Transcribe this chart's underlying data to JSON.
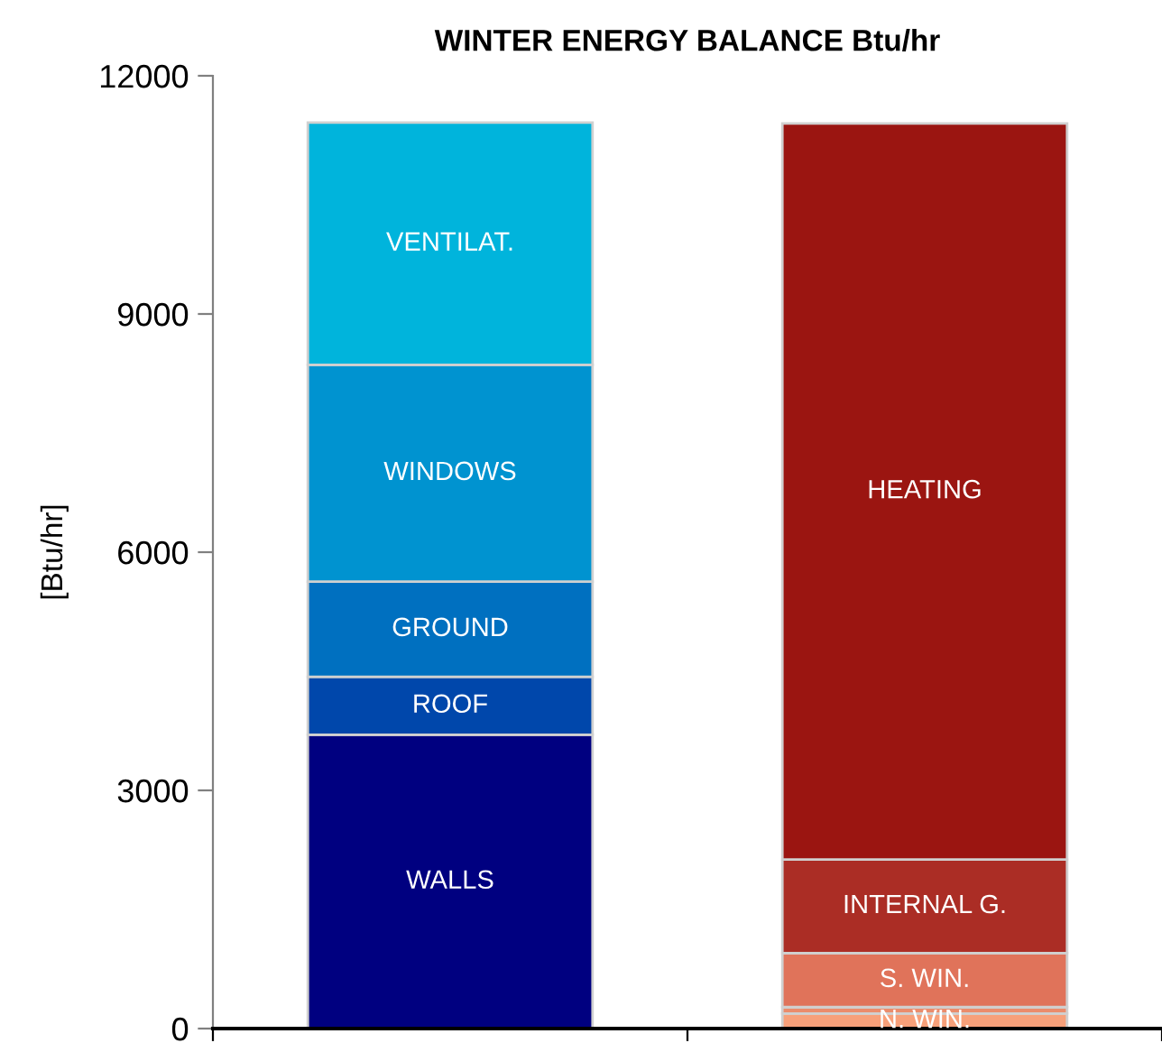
{
  "chart_data": {
    "type": "bar",
    "stacked": true,
    "title": "WINTER ENERGY BALANCE Btu/hr",
    "ylabel": "[Btu/hr]",
    "categories": [
      null,
      null
    ],
    "ylim": [
      0,
      12000
    ],
    "yticks": [
      0,
      3000,
      6000,
      9000,
      12000
    ],
    "grid": false,
    "legend": false,
    "series": [
      {
        "name": "WALLS",
        "color": "#000080",
        "values": [
          3700,
          null
        ]
      },
      {
        "name": "ROOF",
        "color": "#0047ab",
        "values": [
          730,
          null
        ]
      },
      {
        "name": "GROUND",
        "color": "#0070c0",
        "values": [
          1200,
          null
        ]
      },
      {
        "name": "WINDOWS",
        "color": "#0093d0",
        "values": [
          2730,
          null
        ]
      },
      {
        "name": "VENTILAT.",
        "color": "#00b4dc",
        "values": [
          3050,
          null
        ]
      },
      {
        "name": "N. WIN.",
        "color": "#f7a07a",
        "values": [
          null,
          190
        ]
      },
      {
        "color": "#eb8c6c",
        "values": [
          null,
          80
        ]
      },
      {
        "name": "S. WIN.",
        "color": "#e0735a",
        "values": [
          null,
          680
        ]
      },
      {
        "name": "INTERNAL G.",
        "color": "#ab2d25",
        "values": [
          null,
          1180
        ]
      },
      {
        "name": "HEATING",
        "color": "#9b1511",
        "values": [
          null,
          9270
        ]
      }
    ]
  }
}
